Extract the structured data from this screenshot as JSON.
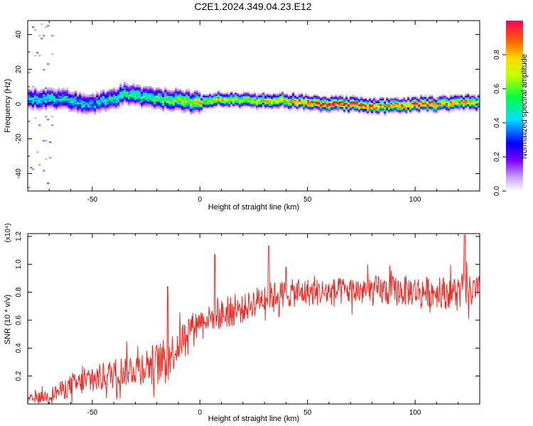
{
  "title": "C2E1.2024.349.04.23.E12",
  "chart_data": [
    {
      "type": "heatmap",
      "title": "",
      "xlabel": "Height of straight line (km)",
      "ylabel": "Frequency (Hz)",
      "xlim": [
        -80,
        130
      ],
      "ylim": [
        -50,
        48
      ],
      "xticks": [
        -50,
        0,
        50,
        100
      ],
      "yticks": [
        -40,
        -20,
        0,
        20,
        40
      ],
      "grid": false,
      "colorbar": {
        "label": "Normalized spectral amplitude",
        "range": [
          0,
          1
        ],
        "ticks": [
          "0.0",
          "0.2",
          "0.4",
          "0.6",
          "0.8"
        ],
        "colors": [
          "#ffffff",
          "#c9a0ff",
          "#7b00ff",
          "#0000ff",
          "#00e0ff",
          "#00ff40",
          "#c8ff00",
          "#ffd700",
          "#ff6000",
          "#ff0060"
        ]
      },
      "ridge": {
        "x": [
          -80,
          -70,
          -60,
          -50,
          -40,
          -35,
          -30,
          -20,
          -10,
          0,
          10,
          20,
          30,
          40,
          50,
          60,
          70,
          80,
          90,
          100,
          110,
          120,
          130
        ],
        "frequency": [
          3,
          3,
          2,
          0,
          3,
          6,
          5,
          3,
          2,
          1,
          3,
          2,
          2,
          2,
          1,
          0,
          0,
          -1,
          -1,
          0,
          0,
          1,
          1
        ],
        "amplitude": [
          0.45,
          0.45,
          0.45,
          0.4,
          0.5,
          0.5,
          0.5,
          0.55,
          0.65,
          0.75,
          0.7,
          0.7,
          0.75,
          0.75,
          0.9,
          0.95,
          0.95,
          0.9,
          0.85,
          0.85,
          0.85,
          0.85,
          0.8
        ]
      }
    },
    {
      "type": "line",
      "title": "",
      "xlabel": "Height of straight line (km)",
      "ylabel": "SNR (10 * v/v)",
      "y_multiplier": "(x10⁴)",
      "xlim": [
        -80,
        130
      ],
      "ylim": [
        0,
        1.22
      ],
      "xticks": [
        -50,
        0,
        50,
        100
      ],
      "yticks": [
        0.2,
        0.4,
        0.6,
        0.8,
        1.0,
        1.2
      ],
      "ytick_labels": [
        "0.2",
        "0.4",
        "0.6",
        "0.8",
        "1.0",
        "1.2"
      ],
      "grid": false,
      "series": [
        {
          "color": "#e8302a",
          "x": [
            -80,
            -70,
            -60,
            -50,
            -40,
            -30,
            -25,
            -20,
            -15,
            -10,
            -5,
            0,
            5,
            10,
            15,
            20,
            25,
            30,
            40,
            50,
            60,
            70,
            80,
            90,
            100,
            110,
            120,
            130
          ],
          "values": [
            0.03,
            0.06,
            0.13,
            0.17,
            0.22,
            0.26,
            0.28,
            0.3,
            0.33,
            0.42,
            0.55,
            0.6,
            0.62,
            0.64,
            0.66,
            0.68,
            0.73,
            0.77,
            0.79,
            0.8,
            0.8,
            0.81,
            0.81,
            0.81,
            0.81,
            0.8,
            0.8,
            0.8
          ],
          "noise": [
            0.03,
            0.05,
            0.08,
            0.1,
            0.11,
            0.12,
            0.13,
            0.14,
            0.15,
            0.13,
            0.1,
            0.08,
            0.09,
            0.11,
            0.11,
            0.1,
            0.1,
            0.1,
            0.1,
            0.1,
            0.1,
            0.1,
            0.11,
            0.11,
            0.11,
            0.11,
            0.12,
            0.12
          ],
          "peaks": [
            {
              "x": -15,
              "y": 0.84
            },
            {
              "x": 7,
              "y": 1.07
            },
            {
              "x": 32,
              "y": 1.13
            },
            {
              "x": 40,
              "y": 0.98
            },
            {
              "x": 123,
              "y": 1.21
            }
          ]
        }
      ]
    }
  ]
}
